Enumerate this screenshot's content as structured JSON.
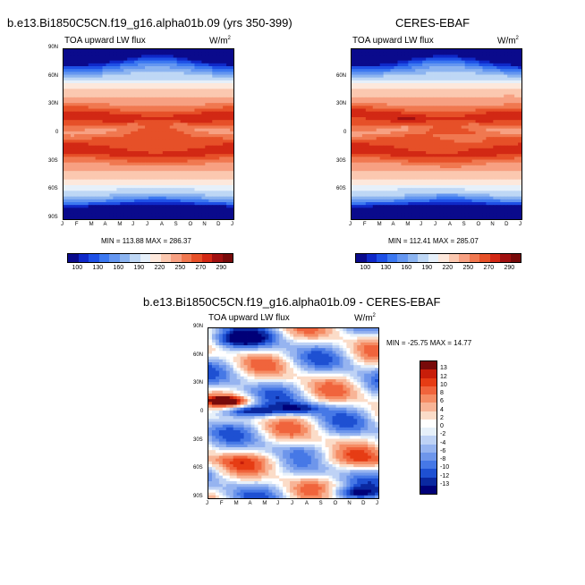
{
  "months": [
    "J",
    "F",
    "M",
    "A",
    "M",
    "J",
    "J",
    "A",
    "S",
    "O",
    "N",
    "D",
    "J"
  ],
  "lat_ticks": [
    "90N",
    "60N",
    "30N",
    "0",
    "30S",
    "60S",
    "90S"
  ],
  "lat_ticks_partial": [
    "",
    "60N",
    "30N",
    "0",
    "30S",
    "60S",
    ""
  ],
  "panels": [
    {
      "title": "b.e13.Bi1850C5CN.f19_g16.alpha01b.09 (yrs 350-399)",
      "subtitle": "TOA upward LW flux",
      "units": "W/m",
      "units_sup": "2",
      "stats": "MIN = 113.88  MAX = 286.37"
    },
    {
      "title": "CERES-EBAF",
      "subtitle": "TOA upward LW flux",
      "units": "W/m",
      "units_sup": "2",
      "stats": "MIN = 112.41  MAX = 285.07"
    },
    {
      "title": "b.e13.Bi1850C5CN.f19_g16.alpha01b.09 - CERES-EBAF",
      "subtitle": "TOA upward LW flux",
      "units": "W/m",
      "units_sup": "2",
      "stats": "MIN = -25.75  MAX =  14.77"
    }
  ],
  "colorbar_seq": {
    "colors": [
      "#0a0a8c",
      "#0f28c8",
      "#1e50e6",
      "#3c78f0",
      "#6496f0",
      "#8cb4f0",
      "#bed7f5",
      "#e6f0fa",
      "#fde8dc",
      "#fbc8b0",
      "#f7a082",
      "#f07850",
      "#e65028",
      "#d22814",
      "#a01010",
      "#780a0a"
    ],
    "labels": [
      "100",
      "130",
      "160",
      "190",
      "220",
      "250",
      "270",
      "290"
    ]
  },
  "colorbar_div": {
    "colors": [
      "#780a0a",
      "#c81e0a",
      "#e63c14",
      "#f0643c",
      "#f58c64",
      "#f8b496",
      "#fbdcc8",
      "#ffffff",
      "#e6f0fa",
      "#bed2f5",
      "#96b4f0",
      "#6e96eb",
      "#4678e6",
      "#1e50d2",
      "#0a28a0",
      "#000078"
    ],
    "labels": [
      "13",
      "12",
      "10",
      "8",
      "6",
      "4",
      "2",
      "0",
      "-2",
      "-4",
      "-6",
      "-8",
      "-10",
      "-12",
      "-13"
    ]
  },
  "chart_data": [
    {
      "type": "heatmap",
      "title": "b.e13.Bi1850C5CN.f19_g16.alpha01b.09 (yrs 350-399)",
      "subtitle": "TOA upward LW flux",
      "units": "W/m2",
      "x": [
        "J",
        "F",
        "M",
        "A",
        "M",
        "J",
        "J",
        "A",
        "S",
        "O",
        "N",
        "D",
        "J"
      ],
      "y": [
        "90N",
        "60N",
        "30N",
        "0",
        "30S",
        "60S",
        "90S"
      ],
      "min": 113.88,
      "max": 286.37,
      "zlevels": [
        100,
        130,
        160,
        190,
        220,
        250,
        270,
        290
      ]
    },
    {
      "type": "heatmap",
      "title": "CERES-EBAF",
      "subtitle": "TOA upward LW flux",
      "units": "W/m2",
      "x": [
        "J",
        "F",
        "M",
        "A",
        "M",
        "J",
        "J",
        "A",
        "S",
        "O",
        "N",
        "D",
        "J"
      ],
      "y": [
        "60N",
        "30N",
        "0",
        "30S",
        "60S"
      ],
      "min": 112.41,
      "max": 285.07,
      "zlevels": [
        100,
        130,
        160,
        190,
        220,
        250,
        270,
        290
      ]
    },
    {
      "type": "heatmap",
      "title": "b.e13.Bi1850C5CN.f19_g16.alpha01b.09 - CERES-EBAF",
      "subtitle": "TOA upward LW flux",
      "units": "W/m2",
      "x": [
        "J",
        "F",
        "M",
        "A",
        "M",
        "J",
        "J",
        "A",
        "S",
        "O",
        "N",
        "D",
        "J"
      ],
      "y": [
        "90N",
        "60N",
        "30N",
        "0",
        "30S",
        "60S",
        "90S"
      ],
      "min": -25.75,
      "max": 14.77,
      "zlevels": [
        13,
        12,
        10,
        8,
        6,
        4,
        2,
        0,
        -2,
        -4,
        -6,
        -8,
        -10,
        -12,
        -13
      ]
    }
  ]
}
